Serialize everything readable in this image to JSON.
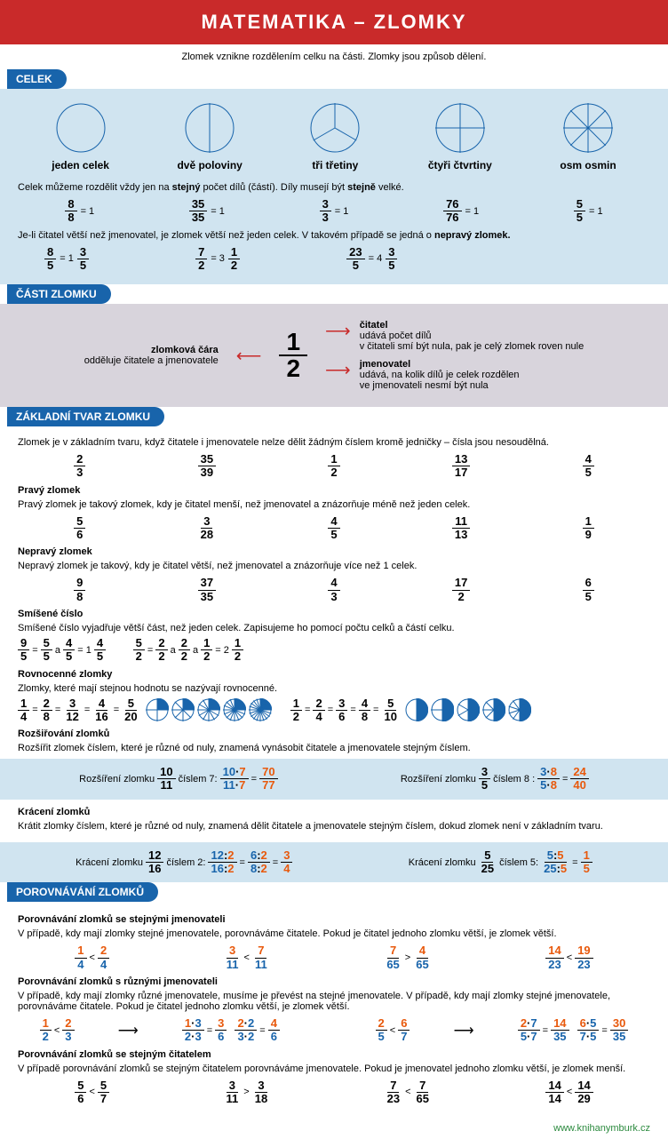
{
  "header": {
    "title": "MATEMATIKA – ZLOMKY"
  },
  "subtitle": "Zlomek vznikne rozdělením celku na části. Zlomky jsou způsob dělení.",
  "sections": {
    "celek": {
      "tab": "CELEK",
      "circles": [
        {
          "label": "jeden celek",
          "parts": 1
        },
        {
          "label": "dvě poloviny",
          "parts": 2
        },
        {
          "label": "tři třetiny",
          "parts": 3
        },
        {
          "label": "čtyři čtvrtiny",
          "parts": 4
        },
        {
          "label": "osm osmin",
          "parts": 8
        }
      ],
      "line1": "Celek můžeme rozdělit vždy jen na <b>stejný</b> počet dílů (částí). Díly musejí být <b>stejně</b> velké.",
      "equals_row": [
        {
          "n": "8",
          "d": "8",
          "r": "= 1"
        },
        {
          "n": "35",
          "d": "35",
          "r": "= 1"
        },
        {
          "n": "3",
          "d": "3",
          "r": "= 1"
        },
        {
          "n": "76",
          "d": "76",
          "r": "= 1"
        },
        {
          "n": "5",
          "d": "5",
          "r": "= 1"
        }
      ],
      "line2": "Je-li čitatel větší než jmenovatel, je zlomek větší než jeden celek. V takovém případě se jedná o <b>nepravý zlomek.</b>",
      "mixed_row": [
        {
          "ln": "8",
          "ld": "5",
          "whole": "1",
          "rn": "3",
          "rd": "5"
        },
        {
          "ln": "7",
          "ld": "2",
          "whole": "3",
          "rn": "1",
          "rd": "2"
        },
        {
          "ln": "23",
          "ld": "5",
          "whole": "4",
          "rn": "3",
          "rd": "5"
        }
      ]
    },
    "casti": {
      "tab": "ČÁSTI ZLOMKU",
      "left_title": "zlomková čára",
      "left_sub": "odděluje čitatele a jmenovatele",
      "big_n": "1",
      "big_d": "2",
      "right_top_title": "čitatel",
      "right_top_lines": [
        "udává počet dílů",
        "v čitateli smí být nula, pak je celý zlomek roven nule"
      ],
      "right_bot_title": "jmenovatel",
      "right_bot_lines": [
        "udává, na kolik dílů je celek rozdělen",
        "ve jmenovateli nesmí být nula"
      ]
    },
    "zakladni": {
      "tab": "ZÁKLADNÍ TVAR ZLOMKU",
      "line1": "Zlomek je v základním tvaru, když čitatele i jmenovatele nelze dělit žádným číslem kromě jedničky – čísla jsou nesoudělná.",
      "row1": [
        [
          "2",
          "3"
        ],
        [
          "35",
          "39"
        ],
        [
          "1",
          "2"
        ],
        [
          "13",
          "17"
        ],
        [
          "4",
          "5"
        ]
      ],
      "pravy_h": "Pravý zlomek",
      "pravy_t": "Pravý zlomek je takový zlomek, kdy je čitatel menší, než jmenovatel a znázorňuje méně než jeden celek.",
      "row2": [
        [
          "5",
          "6"
        ],
        [
          "3",
          "28"
        ],
        [
          "4",
          "5"
        ],
        [
          "11",
          "13"
        ],
        [
          "1",
          "9"
        ]
      ],
      "nepravy_h": "Nepravý zlomek",
      "nepravy_t": "Nepravý zlomek je takový, kdy je čitatel větší, než jmenovatel a znázorňuje více než 1 celek.",
      "row3": [
        [
          "9",
          "8"
        ],
        [
          "37",
          "35"
        ],
        [
          "4",
          "3"
        ],
        [
          "17",
          "2"
        ],
        [
          "6",
          "5"
        ]
      ],
      "smisene_h": "Smíšené číslo",
      "smisene_t": "Smíšené číslo vyjadřuje větší část, než jeden celek. Zapisujeme ho pomocí počtu celků a částí celku.",
      "rovnocenne_h": "Rovnocenné zlomky",
      "rovnocenne_t": "Zlomky, které mají stejnou hodnotu se nazývají rovnocenné.",
      "rozsir_h": "Rozšiřování zlomků",
      "rozsir_t": "Rozšířit zlomek číslem, které je různé od nuly, znamená vynásobit čitatele a jmenovatele stejným číslem.",
      "rozsir_l1": "Rozšíření zlomku",
      "rozsir_l2": "číslem 7:",
      "rozsir_l3": "Rozšíření zlomku",
      "rozsir_l4": "číslem 8 :",
      "kraceni_h": "Krácení zlomků",
      "kraceni_t": "Krátit zlomky číslem, které je různé od nuly, znamená dělit čitatele a jmenovatele stejným číslem, dokud zlomek není v základním tvaru.",
      "kraceni_l1": "Krácení zlomku",
      "kraceni_l2": "číslem 2:",
      "kraceni_l3": "Krácení zlomku",
      "kraceni_l4": "číslem 5:"
    },
    "porov": {
      "tab": "POROVNÁVÁNÍ ZLOMKŮ",
      "h1": "Porovnávání zlomků se stejnými jmenovateli",
      "t1": "V případě, kdy mají zlomky stejné jmenovatele, porovnáváme čitatele. Pokud je čitatel jednoho zlomku větší, je zlomek větší.",
      "h2": "Porovnávání zlomků s různými jmenovateli",
      "t2": "V případě, kdy mají zlomky různé jmenovatele, musíme je převést na stejné jmenovatele. V případě, kdy mají zlomky stejné jmenovatele, porovnáváme čitatele. Pokud je čitatel jednoho zlomku větší, je zlomek větší.",
      "h3": "Porovnávání zlomků se stejným čitatelem",
      "t3": "V případě porovnávání zlomků se stejným čitatelem porovnáváme jmenovatele. Pokud je jmenovatel jednoho zlomku větší, je zlomek menší."
    }
  },
  "footer": "www.knihanymburk.cz",
  "colors": {
    "header_bg": "#c92a2a",
    "tab_bg": "#1864ab",
    "section_blue": "#d0e4f0",
    "section_grey": "#d8d4dc",
    "blue_text": "#1864ab",
    "orange_text": "#e8590c"
  }
}
